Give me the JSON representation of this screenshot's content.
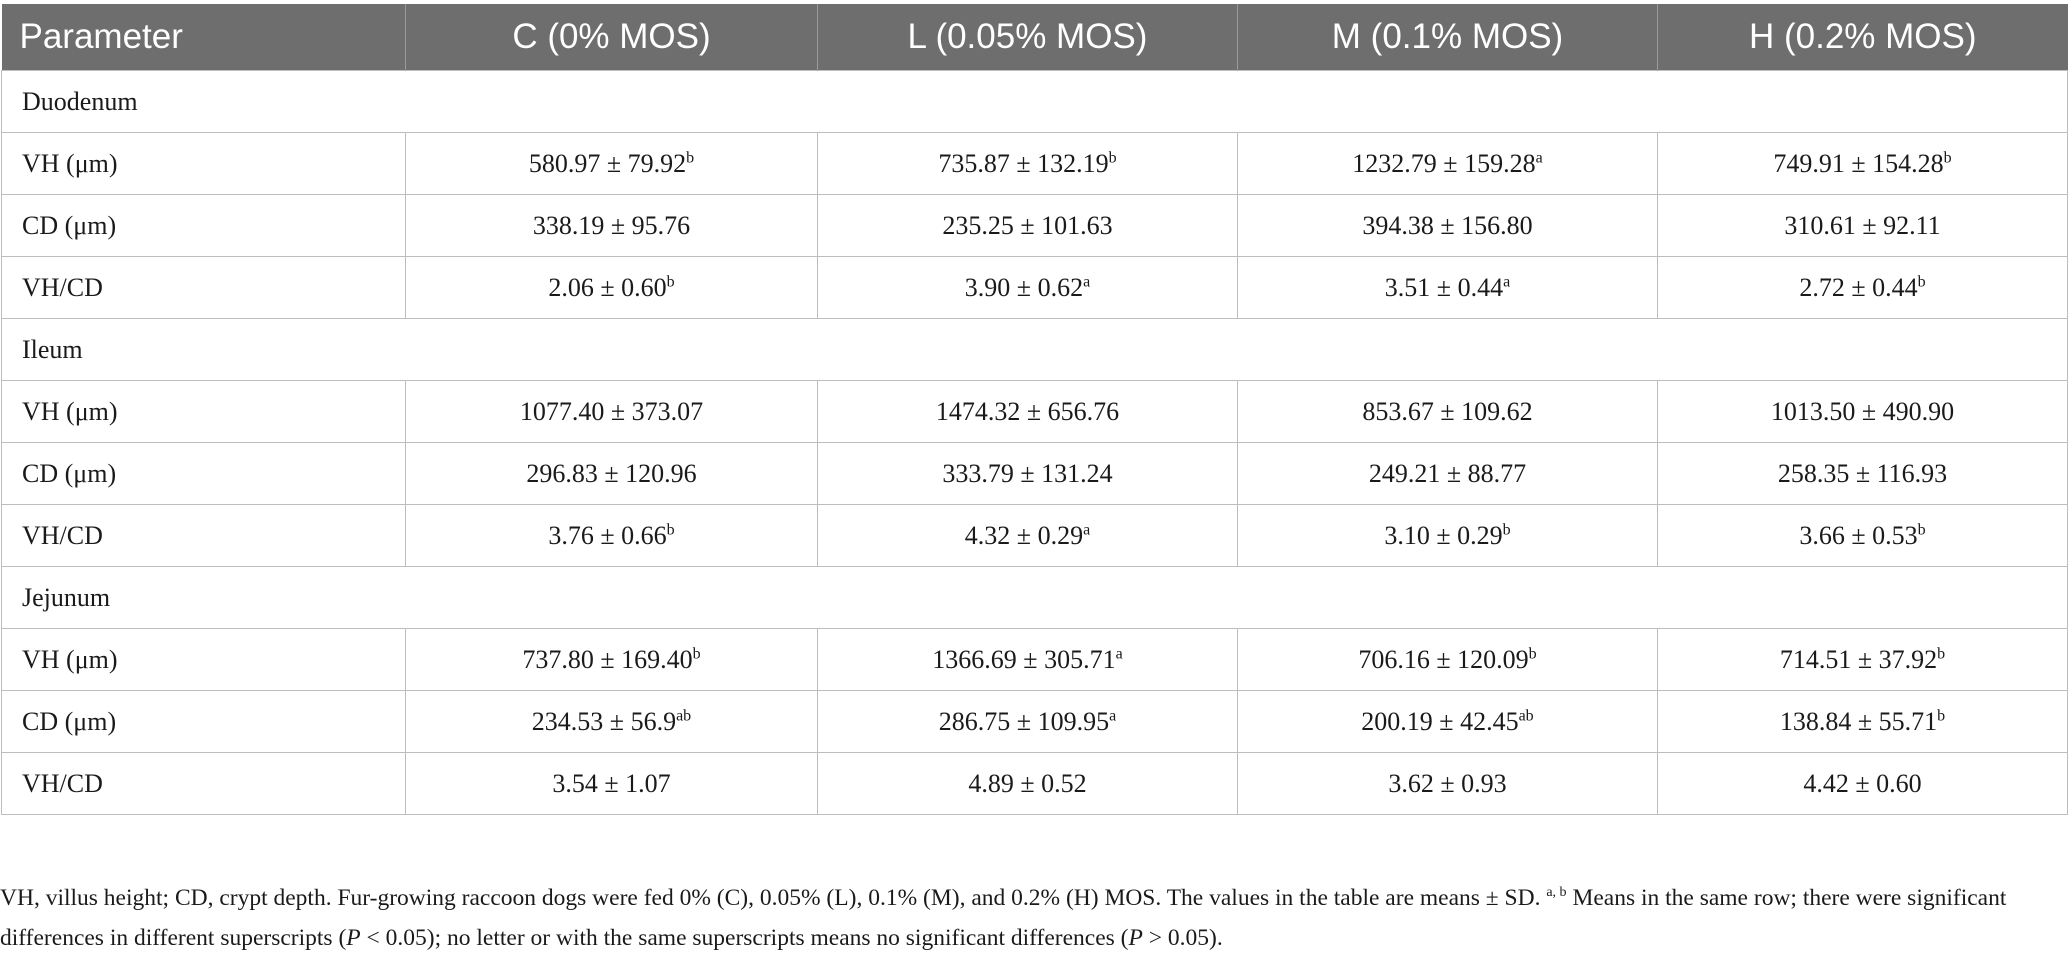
{
  "header": [
    "Parameter",
    "C (0% MOS)",
    "L (0.05% MOS)",
    "M (0.1% MOS)",
    "H (0.2% MOS)"
  ],
  "sections": [
    {
      "name": "Duodenum",
      "rows": [
        {
          "param": "VH (μm)",
          "cells": [
            {
              "v": "580.97 ± 79.92",
              "s": "b"
            },
            {
              "v": "735.87 ± 132.19",
              "s": "b"
            },
            {
              "v": "1232.79 ± 159.28",
              "s": "a"
            },
            {
              "v": "749.91 ± 154.28",
              "s": "b"
            }
          ]
        },
        {
          "param": "CD (μm)",
          "cells": [
            {
              "v": "338.19 ± 95.76",
              "s": ""
            },
            {
              "v": "235.25 ± 101.63",
              "s": ""
            },
            {
              "v": "394.38 ± 156.80",
              "s": ""
            },
            {
              "v": "310.61 ± 92.11",
              "s": ""
            }
          ]
        },
        {
          "param": "VH/CD",
          "cells": [
            {
              "v": "2.06 ± 0.60",
              "s": "b"
            },
            {
              "v": "3.90 ± 0.62",
              "s": "a"
            },
            {
              "v": "3.51 ± 0.44",
              "s": "a"
            },
            {
              "v": "2.72 ± 0.44",
              "s": "b"
            }
          ]
        }
      ]
    },
    {
      "name": "Ileum",
      "rows": [
        {
          "param": "VH (μm)",
          "cells": [
            {
              "v": "1077.40 ± 373.07",
              "s": ""
            },
            {
              "v": "1474.32 ± 656.76",
              "s": ""
            },
            {
              "v": "853.67 ± 109.62",
              "s": ""
            },
            {
              "v": "1013.50 ± 490.90",
              "s": ""
            }
          ]
        },
        {
          "param": "CD (μm)",
          "cells": [
            {
              "v": "296.83 ± 120.96",
              "s": ""
            },
            {
              "v": "333.79 ± 131.24",
              "s": ""
            },
            {
              "v": "249.21 ± 88.77",
              "s": ""
            },
            {
              "v": "258.35 ± 116.93",
              "s": ""
            }
          ]
        },
        {
          "param": "VH/CD",
          "cells": [
            {
              "v": "3.76 ± 0.66",
              "s": "b"
            },
            {
              "v": "4.32 ± 0.29",
              "s": "a"
            },
            {
              "v": "3.10 ± 0.29",
              "s": "b"
            },
            {
              "v": "3.66 ± 0.53",
              "s": "b"
            }
          ]
        }
      ]
    },
    {
      "name": "Jejunum",
      "rows": [
        {
          "param": "VH (μm)",
          "cells": [
            {
              "v": "737.80 ± 169.40",
              "s": "b"
            },
            {
              "v": "1366.69 ± 305.71",
              "s": "a"
            },
            {
              "v": "706.16 ± 120.09",
              "s": "b"
            },
            {
              "v": "714.51 ± 37.92",
              "s": "b"
            }
          ]
        },
        {
          "param": "CD (μm)",
          "cells": [
            {
              "v": "234.53 ± 56.9",
              "s": "ab"
            },
            {
              "v": "286.75 ± 109.95",
              "s": "a"
            },
            {
              "v": "200.19 ± 42.45",
              "s": "ab"
            },
            {
              "v": "138.84 ± 55.71",
              "s": "b"
            }
          ]
        },
        {
          "param": "VH/CD",
          "cells": [
            {
              "v": "3.54 ± 1.07",
              "s": ""
            },
            {
              "v": "4.89 ± 0.52",
              "s": ""
            },
            {
              "v": "3.62 ± 0.93",
              "s": ""
            },
            {
              "v": "4.42 ± 0.60",
              "s": ""
            }
          ]
        }
      ]
    }
  ],
  "footnote": {
    "part1": "VH, villus height; CD, crypt depth. Fur-growing raccoon dogs were fed 0% (C), 0.05% (L), 0.1% (M), and 0.2% (H) MOS. The values in the table are means ± SD. ",
    "sup": "a, b",
    "part2": " Means in the same row; there were significant differences in different superscripts (",
    "p1": "P",
    "part3": " < 0.05); no letter or with the same superscripts means no significant differences (",
    "p2": "P",
    "part4": " > 0.05)."
  }
}
